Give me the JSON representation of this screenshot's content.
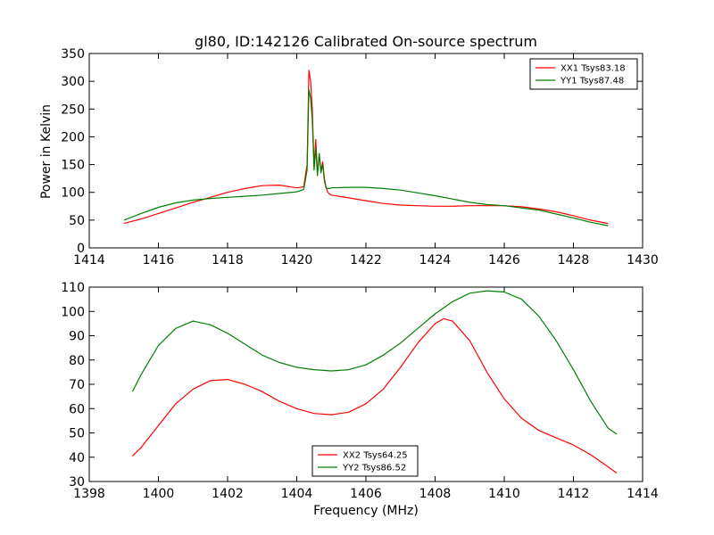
{
  "figure": {
    "title": "gl80, ID:142126 Calibrated On-source spectrum",
    "ylabel": "Power in Kelvin",
    "xlabel": "Frequency (MHz)"
  },
  "chart_data": [
    {
      "type": "line",
      "title": "gl80, ID:142126 Calibrated On-source spectrum",
      "xlabel": "",
      "ylabel": "Power in Kelvin",
      "xlim": [
        1414,
        1430
      ],
      "ylim": [
        0,
        350
      ],
      "xticks": [
        1414,
        1416,
        1418,
        1420,
        1422,
        1424,
        1426,
        1428,
        1430
      ],
      "yticks": [
        0,
        50,
        100,
        150,
        200,
        250,
        300,
        350
      ],
      "legend_position": "top-right",
      "series": [
        {
          "name": "XX1 Tsys83.18",
          "color": "#ff0000",
          "x": [
            1415.0,
            1415.5,
            1416.0,
            1416.5,
            1417.0,
            1417.5,
            1418.0,
            1418.5,
            1419.0,
            1419.5,
            1420.0,
            1420.2,
            1420.3,
            1420.35,
            1420.4,
            1420.45,
            1420.5,
            1420.55,
            1420.6,
            1420.65,
            1420.7,
            1420.75,
            1420.8,
            1420.85,
            1420.9,
            1420.95,
            1421.0,
            1421.5,
            1422.0,
            1422.5,
            1423.0,
            1423.5,
            1424.0,
            1424.5,
            1425.0,
            1425.5,
            1426.0,
            1426.5,
            1427.0,
            1427.5,
            1428.0,
            1428.5,
            1429.0
          ],
          "y": [
            44,
            52,
            62,
            72,
            82,
            91,
            100,
            107,
            112,
            113,
            108,
            110,
            150,
            320,
            300,
            250,
            145,
            195,
            135,
            168,
            140,
            155,
            125,
            108,
            100,
            97,
            95,
            90,
            85,
            80,
            77,
            76,
            75,
            75,
            76,
            76,
            76,
            74,
            70,
            65,
            58,
            50,
            44
          ]
        },
        {
          "name": "YY1 Tsys87.48",
          "color": "#008000",
          "x": [
            1415.0,
            1415.5,
            1416.0,
            1416.5,
            1417.0,
            1417.5,
            1418.0,
            1418.5,
            1419.0,
            1419.5,
            1420.0,
            1420.2,
            1420.3,
            1420.35,
            1420.4,
            1420.45,
            1420.5,
            1420.55,
            1420.6,
            1420.65,
            1420.7,
            1420.75,
            1420.8,
            1420.85,
            1420.9,
            1420.95,
            1421.0,
            1421.5,
            1422.0,
            1422.5,
            1423.0,
            1423.5,
            1424.0,
            1424.5,
            1425.0,
            1425.5,
            1426.0,
            1426.5,
            1427.0,
            1427.5,
            1428.0,
            1428.5,
            1429.0
          ],
          "y": [
            50,
            62,
            73,
            81,
            86,
            89,
            91,
            93,
            95,
            98,
            101,
            105,
            140,
            285,
            270,
            230,
            140,
            180,
            130,
            170,
            135,
            150,
            120,
            108,
            107,
            107,
            108,
            109,
            109,
            107,
            104,
            99,
            94,
            88,
            82,
            78,
            76,
            72,
            68,
            61,
            54,
            46,
            40
          ]
        }
      ]
    },
    {
      "type": "line",
      "title": "",
      "xlabel": "Frequency (MHz)",
      "ylabel": "",
      "xlim": [
        1398,
        1414
      ],
      "ylim": [
        30,
        110
      ],
      "xticks": [
        1398,
        1400,
        1402,
        1404,
        1406,
        1408,
        1410,
        1412,
        1414
      ],
      "yticks": [
        30,
        40,
        50,
        60,
        70,
        80,
        90,
        100,
        110
      ],
      "legend_position": "bottom-center",
      "series": [
        {
          "name": "XX2 Tsys64.25",
          "color": "#ff0000",
          "x": [
            1399.25,
            1399.5,
            1400.0,
            1400.5,
            1401.0,
            1401.5,
            1402.0,
            1402.5,
            1403.0,
            1403.5,
            1404.0,
            1404.5,
            1405.0,
            1405.5,
            1406.0,
            1406.5,
            1407.0,
            1407.5,
            1408.0,
            1408.25,
            1408.5,
            1409.0,
            1409.5,
            1410.0,
            1410.5,
            1411.0,
            1411.5,
            1412.0,
            1412.5,
            1413.0,
            1413.25
          ],
          "y": [
            40.5,
            44,
            53,
            62,
            68,
            71.5,
            72,
            70,
            67,
            63,
            60,
            58,
            57.5,
            58.5,
            62,
            68,
            77,
            87,
            95,
            97,
            96,
            88,
            75,
            64,
            56,
            51,
            48,
            45,
            41,
            36,
            33.5
          ]
        },
        {
          "name": "YY2 Tsys86.52",
          "color": "#008000",
          "x": [
            1399.25,
            1399.5,
            1400.0,
            1400.5,
            1401.0,
            1401.5,
            1402.0,
            1402.5,
            1403.0,
            1403.5,
            1404.0,
            1404.5,
            1405.0,
            1405.5,
            1406.0,
            1406.5,
            1407.0,
            1407.5,
            1408.0,
            1408.5,
            1409.0,
            1409.5,
            1410.0,
            1410.5,
            1411.0,
            1411.5,
            1412.0,
            1412.5,
            1413.0,
            1413.25
          ],
          "y": [
            67,
            74,
            86,
            93,
            96,
            94.5,
            91,
            86.5,
            82,
            79,
            77,
            76,
            75.5,
            76,
            78,
            82,
            87,
            93,
            99,
            104,
            107.5,
            108.5,
            108,
            105,
            98,
            88,
            76,
            63,
            52,
            49.5
          ]
        }
      ]
    }
  ]
}
